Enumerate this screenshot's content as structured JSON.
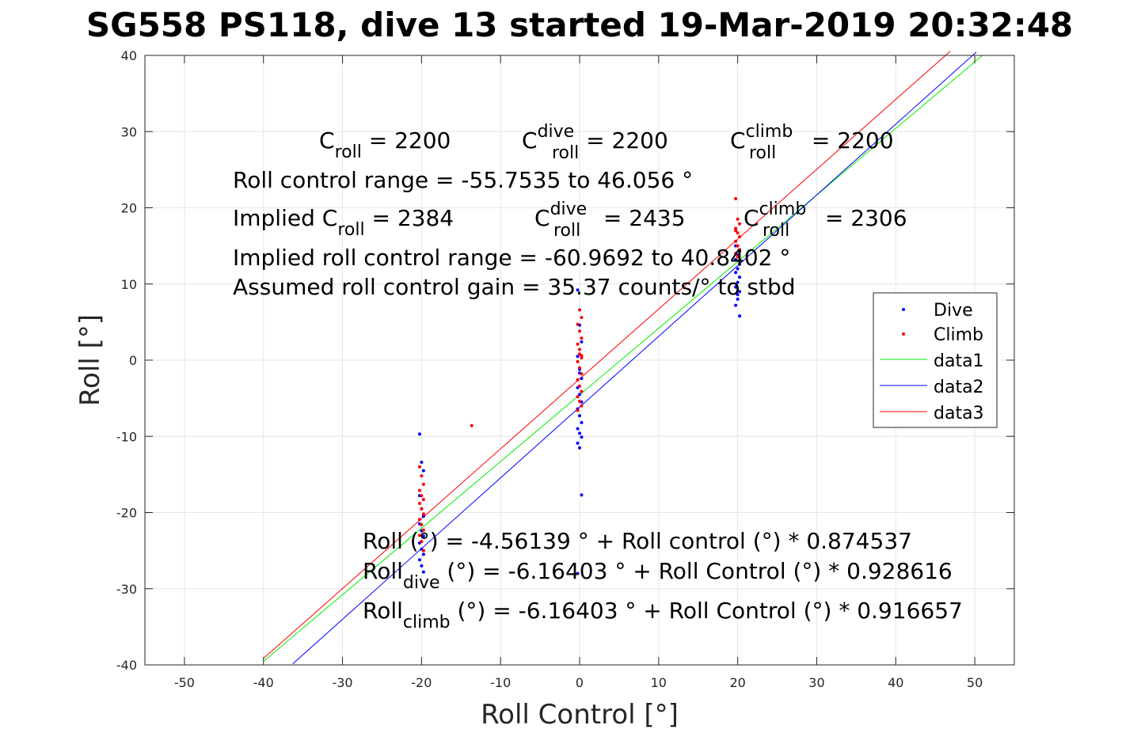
{
  "chart_data": {
    "type": "scatter",
    "title": "SG558 PS118, dive 13 started 19-Mar-2019 20:32:48",
    "xlabel": "Roll Control [°]",
    "ylabel": "Roll [°]",
    "xlim": [
      -55,
      55
    ],
    "ylim": [
      -40,
      40
    ],
    "xticks": [
      -50,
      -40,
      -30,
      -20,
      -10,
      0,
      10,
      20,
      30,
      40,
      50
    ],
    "yticks": [
      -40,
      -30,
      -20,
      -10,
      0,
      10,
      20,
      30,
      40
    ],
    "grid": true,
    "legend_position": "right",
    "series": [
      {
        "name": "Dive",
        "kind": "points",
        "color": "#0000ff",
        "x": [
          -20,
          -20,
          -20,
          -20,
          -20,
          -20,
          -20,
          -20,
          -20,
          -20,
          -20,
          -20,
          -20,
          -20,
          -20,
          0,
          0,
          0,
          0,
          0,
          0,
          0,
          0,
          0,
          0,
          0,
          0,
          0,
          0,
          0,
          0,
          0,
          0,
          0,
          0,
          20,
          20,
          20,
          20,
          20,
          20,
          20,
          20,
          20,
          20,
          20,
          20,
          20,
          20,
          20
        ],
        "y": [
          -9.7,
          -13.4,
          -14.5,
          -17.8,
          -19.5,
          -20.5,
          -21.5,
          -22.4,
          -23.1,
          -24.0,
          -24.8,
          -25.5,
          -26.2,
          -27.0,
          -27.8,
          9.2,
          4.6,
          2.4,
          0.5,
          -1.2,
          -2.4,
          -3.6,
          -4.5,
          -5.5,
          -6.4,
          -7.3,
          -8.2,
          -9.0,
          -9.6,
          -10.1,
          -10.9,
          -11.5,
          -17.7,
          -28.0,
          -1.7,
          5.8,
          7.2,
          8.0,
          9.0,
          9.6,
          10.2,
          10.9,
          11.5,
          12.0,
          12.6,
          13.2,
          13.8,
          14.3,
          15.0,
          8.6
        ]
      },
      {
        "name": "Climb",
        "kind": "points",
        "color": "#ff0000",
        "x": [
          -20,
          -20,
          -20,
          -20,
          -20,
          -20,
          -20,
          -20,
          -20,
          -20,
          -20,
          -20,
          -20,
          -20,
          -20,
          -13.4,
          0,
          0,
          0,
          0,
          0,
          0,
          0,
          0,
          0,
          0,
          0,
          0,
          0,
          0,
          0,
          0,
          0,
          0,
          0,
          0,
          20,
          20,
          20,
          20,
          20,
          20,
          20,
          20,
          20,
          20,
          20,
          20,
          20
        ],
        "y": [
          -14.0,
          -15.2,
          -16.3,
          -17.1,
          -17.8,
          -18.3,
          -18.8,
          -19.5,
          -20.2,
          -20.9,
          -21.6,
          -22.3,
          -23.0,
          -23.8,
          -25.0,
          -8.6,
          6.6,
          5.6,
          4.7,
          3.8,
          2.9,
          2.1,
          1.4,
          0.6,
          -0.2,
          -1.0,
          -1.8,
          -2.6,
          -3.4,
          -4.1,
          -4.8,
          -5.4,
          -6.0,
          -6.6,
          0.8,
          0.3,
          21.2,
          18.5,
          17.9,
          17.3,
          16.7,
          16.2,
          15.6,
          15.0,
          14.5,
          14.0,
          13.6,
          13.1,
          17.0
        ]
      },
      {
        "name": "data1",
        "kind": "line",
        "color": "#00ee00",
        "x": [
          -40,
          50.9
        ],
        "y": [
          -39.54,
          39.95
        ]
      },
      {
        "name": "data2",
        "kind": "line",
        "color": "#0000ff",
        "x": [
          -36.3,
          50.2
        ],
        "y": [
          -39.87,
          40.45
        ]
      },
      {
        "name": "data3",
        "kind": "line",
        "color": "#ff0000",
        "x": [
          -40,
          46.9
        ],
        "y": [
          -39.16,
          40.55
        ]
      }
    ],
    "annotations": {
      "l1": {
        "a_pre": "C",
        "a_sub": "roll",
        "a_post": " = 2200",
        "b_pre": "C",
        "b_sup": "dive",
        "b_sub": "roll",
        "b_post": " = 2200",
        "c_pre": "C",
        "c_sup": "climb",
        "c_sub": "roll",
        "c_post": " = 2200"
      },
      "l2": "Roll control range = -55.7535 to 46.056 °",
      "l3": {
        "a_pre": "Implied C",
        "a_sub": "roll",
        "a_post": " = 2384",
        "b_pre": "C",
        "b_sup": "dive",
        "b_sub": "roll",
        "b_post": " = 2435",
        "c_pre": "C",
        "c_sup": "climb",
        "c_sub": "roll",
        "c_post": " = 2306"
      },
      "l4": "Implied roll control range = -60.9692 to 40.8402 °",
      "l5": "Assumed roll control gain = 35.37 counts/° to stbd",
      "f1": "Roll (°) = -4.56139 ° + Roll control (°) * 0.874537",
      "f2": {
        "pre": "Roll",
        "sub": "dive",
        "post": " (°) = -6.16403 ° + Roll Control (°) * 0.928616"
      },
      "f3": {
        "pre": "Roll",
        "sub": "climb",
        "post": " (°) = -6.16403 ° + Roll Control (°) * 0.916657"
      }
    }
  }
}
